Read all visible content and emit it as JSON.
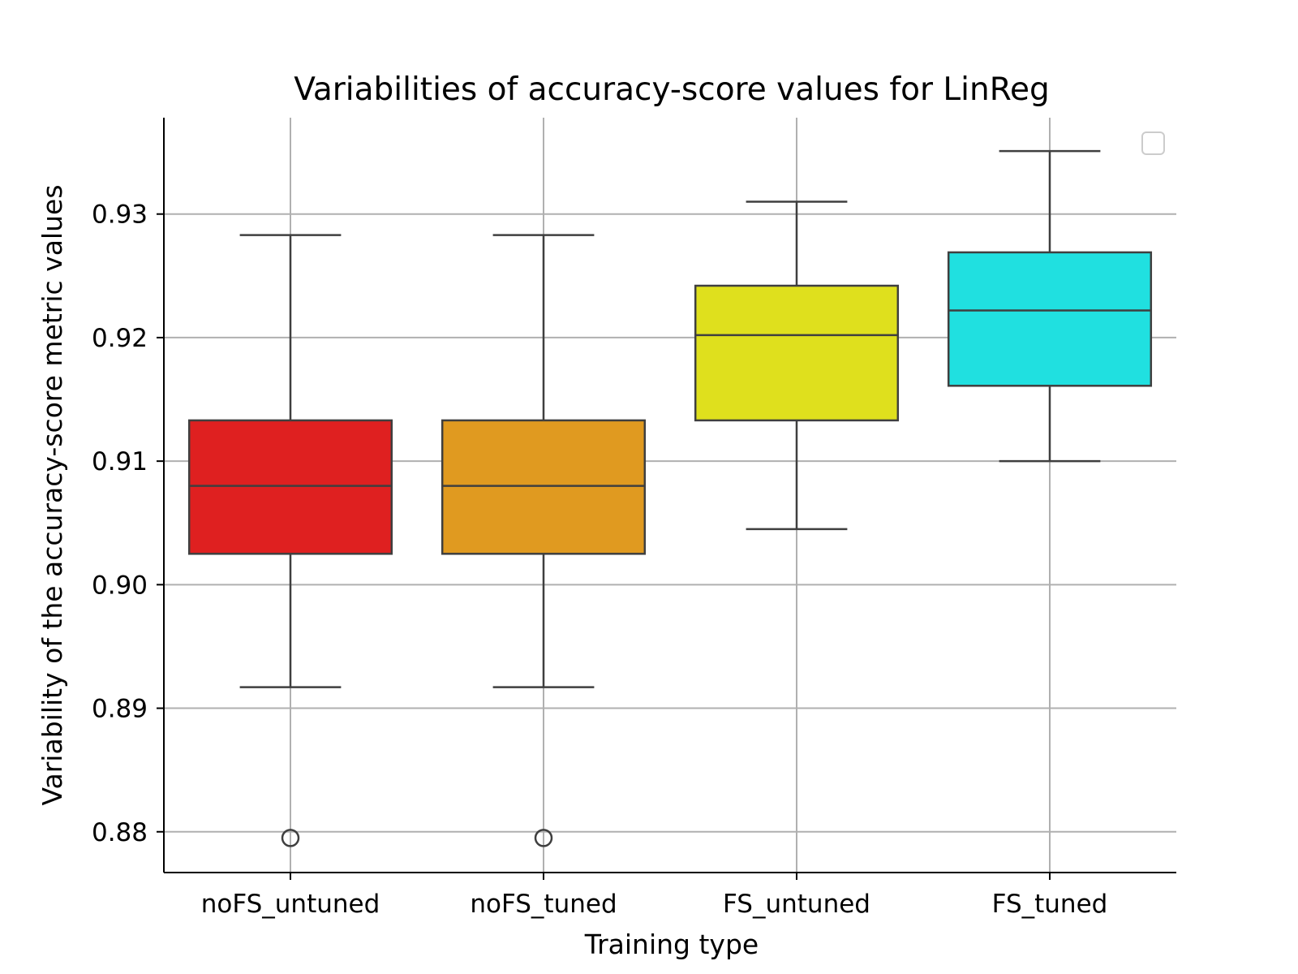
{
  "chart_data": {
    "type": "box",
    "title": "Variabilities of accuracy-score values for LinReg",
    "xlabel": "Training type",
    "ylabel": "Variability of the accuracy-score metric values",
    "ylim": [
      0.8767,
      0.9378
    ],
    "yticks": [
      0.88,
      0.89,
      0.9,
      0.91,
      0.92,
      0.93
    ],
    "ytick_labels": [
      "0.88",
      "0.89",
      "0.90",
      "0.91",
      "0.92",
      "0.93"
    ],
    "grid": true,
    "legend": "top-right (empty)",
    "categories": [
      "noFS_untuned",
      "noFS_tuned",
      "FS_untuned",
      "FS_tuned"
    ],
    "boxes": [
      {
        "category": "noFS_untuned",
        "whisker_low": 0.8917,
        "q1": 0.9025,
        "median": 0.908,
        "q3": 0.9133,
        "whisker_high": 0.9283,
        "outliers": [
          0.8795
        ],
        "color": "#df2020"
      },
      {
        "category": "noFS_tuned",
        "whisker_low": 0.8917,
        "q1": 0.9025,
        "median": 0.908,
        "q3": 0.9133,
        "whisker_high": 0.9283,
        "outliers": [
          0.8795
        ],
        "color": "#e09a20"
      },
      {
        "category": "FS_untuned",
        "whisker_low": 0.9045,
        "q1": 0.9133,
        "median": 0.9202,
        "q3": 0.9242,
        "whisker_high": 0.931,
        "outliers": [],
        "color": "#dfe01d"
      },
      {
        "category": "FS_tuned",
        "whisker_low": 0.91,
        "q1": 0.9161,
        "median": 0.9222,
        "q3": 0.9269,
        "whisker_high": 0.9351,
        "outliers": [],
        "color": "#20e0e0"
      }
    ]
  }
}
